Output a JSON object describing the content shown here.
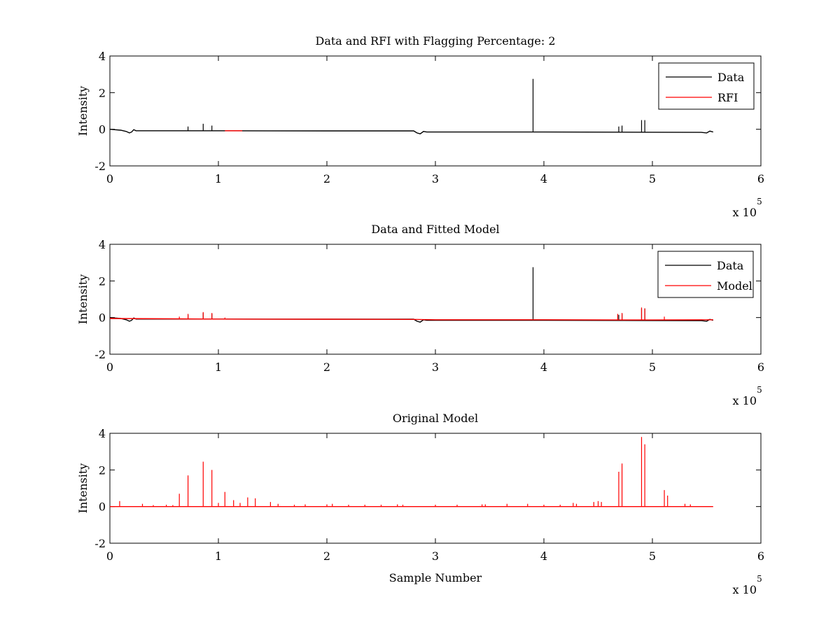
{
  "figure": {
    "background": "#ffffff"
  },
  "chart_data": [
    {
      "type": "line",
      "title": "Data and RFI with Flagging Percentage: 2",
      "xlabel": "",
      "ylabel": "Intensity",
      "xlim": [
        0,
        600000
      ],
      "ylim": [
        -2,
        4
      ],
      "xticks": [
        0,
        1,
        2,
        3,
        4,
        5,
        6
      ],
      "yticks": [
        -2,
        0,
        2,
        4
      ],
      "x_exponent_label": "x 10",
      "x_exponent": "5",
      "legend": {
        "location": "top-right",
        "entries": [
          "Data",
          "RFI"
        ]
      },
      "series": [
        {
          "name": "Data",
          "color": "#000000",
          "baseline": [
            [
              0,
              0
            ],
            [
              10000,
              -0.05
            ],
            [
              15000,
              -0.12
            ],
            [
              18000,
              -0.2
            ],
            [
              20000,
              -0.15
            ],
            [
              22000,
              -0.02
            ],
            [
              24000,
              -0.08
            ],
            [
              100000,
              -0.08
            ],
            [
              200000,
              -0.09
            ],
            [
              280000,
              -0.09
            ],
            [
              283000,
              -0.2
            ],
            [
              286000,
              -0.25
            ],
            [
              289000,
              -0.12
            ],
            [
              292000,
              -0.15
            ],
            [
              400000,
              -0.15
            ],
            [
              500000,
              -0.16
            ],
            [
              545000,
              -0.17
            ],
            [
              550000,
              -0.2
            ],
            [
              553000,
              -0.1
            ],
            [
              556000,
              -0.15
            ]
          ],
          "spikes": [
            [
              72000,
              0.15
            ],
            [
              86000,
              0.3
            ],
            [
              94000,
              0.2
            ],
            [
              390000,
              2.75
            ],
            [
              469000,
              0.15
            ],
            [
              472000,
              0.2
            ],
            [
              490000,
              0.5
            ],
            [
              493000,
              0.5
            ]
          ]
        },
        {
          "name": "RFI",
          "color": "#ff0000",
          "baseline": [
            [
              106000,
              -0.08
            ],
            [
              122000,
              -0.08
            ]
          ],
          "spikes": [
            [
              347000,
              -0.08
            ],
            [
              348500,
              -0.08
            ]
          ]
        }
      ]
    },
    {
      "type": "line",
      "title": "Data and Fitted Model",
      "xlabel": "",
      "ylabel": "Intensity",
      "xlim": [
        0,
        600000
      ],
      "ylim": [
        -2,
        4
      ],
      "xticks": [
        0,
        1,
        2,
        3,
        4,
        5,
        6
      ],
      "yticks": [
        -2,
        0,
        2,
        4
      ],
      "x_exponent_label": "x 10",
      "x_exponent": "5",
      "legend": {
        "location": "top-right",
        "entries": [
          "Data",
          "Model"
        ]
      },
      "series": [
        {
          "name": "Data",
          "color": "#000000",
          "baseline": [
            [
              0,
              0
            ],
            [
              10000,
              -0.05
            ],
            [
              15000,
              -0.12
            ],
            [
              18000,
              -0.2
            ],
            [
              20000,
              -0.15
            ],
            [
              22000,
              -0.02
            ],
            [
              24000,
              -0.08
            ],
            [
              100000,
              -0.08
            ],
            [
              200000,
              -0.09
            ],
            [
              280000,
              -0.09
            ],
            [
              283000,
              -0.2
            ],
            [
              286000,
              -0.25
            ],
            [
              289000,
              -0.12
            ],
            [
              292000,
              -0.15
            ],
            [
              400000,
              -0.15
            ],
            [
              500000,
              -0.16
            ],
            [
              545000,
              -0.17
            ],
            [
              550000,
              -0.2
            ],
            [
              553000,
              -0.1
            ],
            [
              556000,
              -0.15
            ]
          ],
          "spikes": [
            [
              72000,
              0.15
            ],
            [
              86000,
              0.25
            ],
            [
              94000,
              0.2
            ],
            [
              390000,
              2.75
            ],
            [
              469000,
              0.15
            ],
            [
              472000,
              0.2
            ],
            [
              490000,
              0.5
            ],
            [
              493000,
              0.5
            ]
          ]
        },
        {
          "name": "Model",
          "color": "#ff0000",
          "baseline": [
            [
              0,
              -0.05
            ],
            [
              100000,
              -0.08
            ],
            [
              200000,
              -0.09
            ],
            [
              280000,
              -0.1
            ],
            [
              300000,
              -0.12
            ],
            [
              400000,
              -0.12
            ],
            [
              500000,
              -0.13
            ],
            [
              556000,
              -0.12
            ]
          ],
          "spikes": [
            [
              64000,
              0.05
            ],
            [
              72000,
              0.2
            ],
            [
              86000,
              0.3
            ],
            [
              94000,
              0.25
            ],
            [
              106000,
              0.0
            ],
            [
              468000,
              0.2
            ],
            [
              472000,
              0.25
            ],
            [
              490000,
              0.55
            ],
            [
              493000,
              0.5
            ],
            [
              511000,
              0.05
            ]
          ]
        }
      ]
    },
    {
      "type": "line",
      "title": "Original Model",
      "xlabel": "Sample Number",
      "ylabel": "Intensity",
      "xlim": [
        0,
        600000
      ],
      "ylim": [
        -2,
        4
      ],
      "xticks": [
        0,
        1,
        2,
        3,
        4,
        5,
        6
      ],
      "yticks": [
        -2,
        0,
        2,
        4
      ],
      "x_exponent_label": "x 10",
      "x_exponent": "5",
      "series": [
        {
          "color": "#ff0000",
          "baseline": [
            [
              0,
              0
            ],
            [
              556000,
              0
            ]
          ],
          "spikes": [
            [
              9000,
              0.3
            ],
            [
              30000,
              0.15
            ],
            [
              40000,
              0.08
            ],
            [
              52000,
              0.1
            ],
            [
              58000,
              0.08
            ],
            [
              64000,
              0.7
            ],
            [
              72000,
              1.7
            ],
            [
              86000,
              2.45
            ],
            [
              94000,
              2.0
            ],
            [
              100000,
              0.2
            ],
            [
              106000,
              0.8
            ],
            [
              114000,
              0.35
            ],
            [
              120000,
              0.2
            ],
            [
              127000,
              0.5
            ],
            [
              134000,
              0.45
            ],
            [
              148000,
              0.25
            ],
            [
              155000,
              0.15
            ],
            [
              170000,
              0.1
            ],
            [
              180000,
              0.12
            ],
            [
              200000,
              0.12
            ],
            [
              205000,
              0.15
            ],
            [
              220000,
              0.1
            ],
            [
              235000,
              0.1
            ],
            [
              250000,
              0.1
            ],
            [
              265000,
              0.12
            ],
            [
              270000,
              0.1
            ],
            [
              300000,
              0.1
            ],
            [
              320000,
              0.1
            ],
            [
              343000,
              0.12
            ],
            [
              346000,
              0.12
            ],
            [
              366000,
              0.15
            ],
            [
              385000,
              0.15
            ],
            [
              400000,
              0.1
            ],
            [
              415000,
              0.1
            ],
            [
              427000,
              0.2
            ],
            [
              430000,
              0.15
            ],
            [
              446000,
              0.25
            ],
            [
              450000,
              0.3
            ],
            [
              453000,
              0.25
            ],
            [
              469000,
              1.9
            ],
            [
              472000,
              2.35
            ],
            [
              490000,
              3.8
            ],
            [
              493000,
              3.4
            ],
            [
              511000,
              0.9
            ],
            [
              514000,
              0.6
            ],
            [
              530000,
              0.15
            ],
            [
              535000,
              0.12
            ]
          ]
        }
      ]
    }
  ]
}
